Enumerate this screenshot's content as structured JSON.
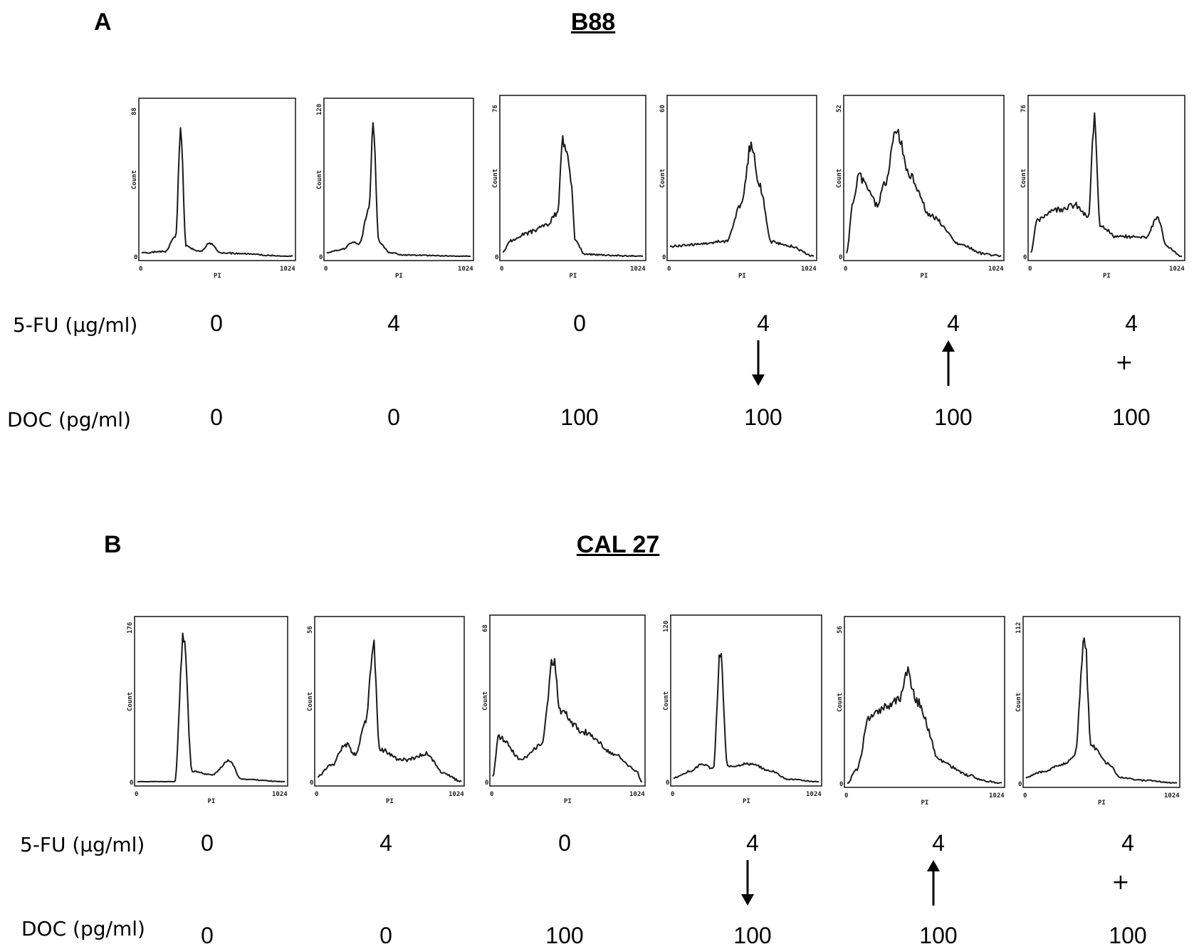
{
  "panels": [
    {
      "letter": "A",
      "title": "B88",
      "row_labels": {
        "fu": "5-FU (µg/ml)",
        "doc": "DOC (pg/ml)"
      },
      "fu": [
        "0",
        "4",
        "0",
        "4",
        "4",
        "4"
      ],
      "doc": [
        "0",
        "0",
        "100",
        "100",
        "100",
        "100"
      ],
      "schedule": [
        "",
        "",
        "",
        "down-arrow",
        "up-arrow",
        "+"
      ]
    },
    {
      "letter": "B",
      "title": "CAL 27",
      "row_labels": {
        "fu": "5-FU (µg/ml)",
        "doc": "DOC (pg/ml)"
      },
      "fu": [
        "0",
        "4",
        "0",
        "4",
        "4",
        "4"
      ],
      "doc": [
        "0",
        "0",
        "100",
        "100",
        "100",
        "100"
      ],
      "schedule": [
        "",
        "",
        "",
        "down-arrow",
        "up-arrow",
        "+"
      ]
    }
  ],
  "chart_data": [
    {
      "type": "line",
      "panel": "A",
      "xlabel": "PI",
      "ylabel": "Count",
      "xlim": [
        0,
        1024
      ],
      "histograms": [
        {
          "ymax": 88,
          "peaks": [
            [
              0,
              2
            ],
            [
              160,
              3
            ],
            [
              230,
              12
            ],
            [
              265,
              75
            ],
            [
              300,
              6
            ],
            [
              400,
              3
            ],
            [
              460,
              8
            ],
            [
              540,
              2
            ],
            [
              1024,
              0
            ]
          ]
        },
        {
          "ymax": 120,
          "peaks": [
            [
              0,
              3
            ],
            [
              120,
              6
            ],
            [
              180,
              12
            ],
            [
              230,
              10
            ],
            [
              300,
              40
            ],
            [
              330,
              110
            ],
            [
              370,
              12
            ],
            [
              450,
              3
            ],
            [
              550,
              1
            ],
            [
              1024,
              0
            ]
          ]
        },
        {
          "ymax": 76,
          "peaks": [
            [
              0,
              2
            ],
            [
              60,
              8
            ],
            [
              180,
              12
            ],
            [
              320,
              16
            ],
            [
              400,
              22
            ],
            [
              440,
              60
            ],
            [
              470,
              56
            ],
            [
              500,
              40
            ],
            [
              530,
              8
            ],
            [
              600,
              1
            ],
            [
              1024,
              0
            ]
          ]
        },
        {
          "ymax": 60,
          "peaks": [
            [
              0,
              4
            ],
            [
              200,
              5
            ],
            [
              400,
              6
            ],
            [
              500,
              20
            ],
            [
              580,
              45
            ],
            [
              640,
              28
            ],
            [
              720,
              6
            ],
            [
              860,
              4
            ],
            [
              1024,
              0
            ]
          ]
        },
        {
          "ymax": 52,
          "peaks": [
            [
              0,
              1
            ],
            [
              40,
              18
            ],
            [
              80,
              28
            ],
            [
              140,
              24
            ],
            [
              200,
              18
            ],
            [
              260,
              26
            ],
            [
              330,
              45
            ],
            [
              420,
              28
            ],
            [
              560,
              14
            ],
            [
              760,
              4
            ],
            [
              900,
              1
            ],
            [
              1024,
              0
            ]
          ]
        },
        {
          "ymax": 76,
          "peaks": [
            [
              0,
              2
            ],
            [
              40,
              18
            ],
            [
              150,
              24
            ],
            [
              300,
              26
            ],
            [
              390,
              20
            ],
            [
              430,
              70
            ],
            [
              470,
              16
            ],
            [
              580,
              10
            ],
            [
              780,
              10
            ],
            [
              860,
              20
            ],
            [
              920,
              5
            ],
            [
              1024,
              0
            ]
          ]
        }
      ]
    },
    {
      "type": "line",
      "panel": "B",
      "xlabel": "PI",
      "ylabel": "Count",
      "xlim": [
        0,
        1024
      ],
      "histograms": [
        {
          "ymax": 176,
          "peaks": [
            [
              0,
              0
            ],
            [
              260,
              0
            ],
            [
              320,
              170
            ],
            [
              380,
              12
            ],
            [
              520,
              8
            ],
            [
              640,
              25
            ],
            [
              720,
              3
            ],
            [
              1024,
              0
            ]
          ]
        },
        {
          "ymax": 56,
          "peaks": [
            [
              0,
              2
            ],
            [
              100,
              6
            ],
            [
              200,
              14
            ],
            [
              270,
              10
            ],
            [
              340,
              22
            ],
            [
              400,
              50
            ],
            [
              440,
              12
            ],
            [
              600,
              8
            ],
            [
              780,
              10
            ],
            [
              900,
              3
            ],
            [
              1024,
              0
            ]
          ]
        },
        {
          "ymax": 68,
          "peaks": [
            [
              0,
              2
            ],
            [
              40,
              20
            ],
            [
              200,
              10
            ],
            [
              330,
              16
            ],
            [
              420,
              55
            ],
            [
              460,
              32
            ],
            [
              620,
              22
            ],
            [
              840,
              12
            ],
            [
              980,
              5
            ],
            [
              1024,
              0
            ]
          ]
        },
        {
          "ymax": 120,
          "peaks": [
            [
              0,
              3
            ],
            [
              120,
              8
            ],
            [
              200,
              14
            ],
            [
              280,
              10
            ],
            [
              330,
              100
            ],
            [
              380,
              12
            ],
            [
              530,
              14
            ],
            [
              700,
              8
            ],
            [
              800,
              2
            ],
            [
              1024,
              0
            ]
          ]
        },
        {
          "ymax": 56,
          "peaks": [
            [
              0,
              0
            ],
            [
              60,
              5
            ],
            [
              150,
              24
            ],
            [
              260,
              28
            ],
            [
              340,
              30
            ],
            [
              400,
              40
            ],
            [
              460,
              30
            ],
            [
              620,
              8
            ],
            [
              800,
              3
            ],
            [
              900,
              1
            ],
            [
              1024,
              0
            ]
          ]
        },
        {
          "ymax": 112,
          "peaks": [
            [
              0,
              4
            ],
            [
              100,
              8
            ],
            [
              260,
              14
            ],
            [
              330,
              20
            ],
            [
              400,
              105
            ],
            [
              440,
              28
            ],
            [
              560,
              14
            ],
            [
              640,
              4
            ],
            [
              800,
              2
            ],
            [
              1024,
              0
            ]
          ]
        }
      ]
    }
  ]
}
